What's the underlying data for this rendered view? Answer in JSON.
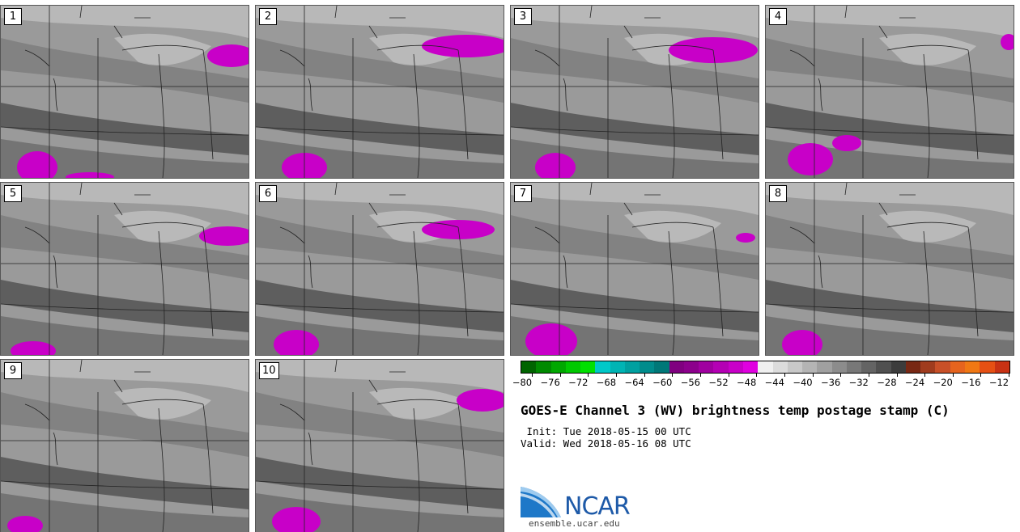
{
  "panels": [
    {
      "label": "1"
    },
    {
      "label": "2"
    },
    {
      "label": "3"
    },
    {
      "label": "4"
    },
    {
      "label": "5"
    },
    {
      "label": "6"
    },
    {
      "label": "7"
    },
    {
      "label": "8"
    },
    {
      "label": "9"
    },
    {
      "label": "10"
    }
  ],
  "colorbar": {
    "colors": [
      "#006400",
      "#008a00",
      "#00a800",
      "#00c800",
      "#00e000",
      "#00c8c8",
      "#00b4b4",
      "#00a0a0",
      "#008c8c",
      "#007878",
      "#800080",
      "#8c008c",
      "#a000a0",
      "#b400b4",
      "#c800c8",
      "#e000e0",
      "#f0f0f0",
      "#dcdcdc",
      "#c8c8c8",
      "#b4b4b4",
      "#a0a0a0",
      "#8c8c8c",
      "#787878",
      "#646464",
      "#505050",
      "#3c3c3c",
      "#782814",
      "#a03c1e",
      "#c85028",
      "#e6641e",
      "#f07814",
      "#e65014",
      "#c83214"
    ],
    "ticks": [
      "−80",
      "−76",
      "−72",
      "−68",
      "−64",
      "−60",
      "−56",
      "−52",
      "−48",
      "−44",
      "−40",
      "−36",
      "−32",
      "−28",
      "−24",
      "−20",
      "−16",
      "−12"
    ]
  },
  "title": "GOES-E Channel 3 (WV) brightness temp postage stamp (C)",
  "init_line": " Init: Tue 2018-05-15 00 UTC",
  "valid_line": "Valid: Wed 2018-05-16 08 UTC",
  "logo_text": "NCAR",
  "site": "ensemble.ucar.edu"
}
